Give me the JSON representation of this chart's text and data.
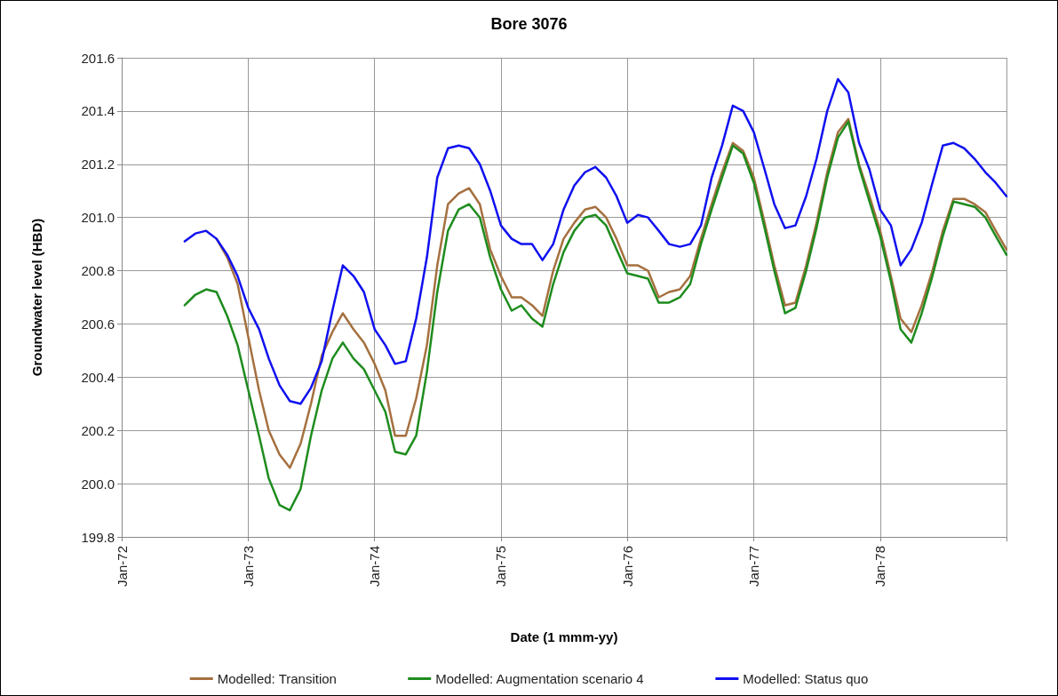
{
  "chart_data": {
    "type": "line",
    "title": "Bore 3076",
    "xlabel": "Date (1 mmm-yy)",
    "ylabel": "Groundwater level (HBD)",
    "x": [
      "1972-07",
      "1972-08",
      "1972-09",
      "1972-10",
      "1972-11",
      "1972-12",
      "1973-01",
      "1973-02",
      "1973-03",
      "1973-04",
      "1973-05",
      "1973-06",
      "1973-07",
      "1973-08",
      "1973-09",
      "1973-10",
      "1973-11",
      "1973-12",
      "1974-01",
      "1974-02",
      "1974-03",
      "1974-04",
      "1974-05",
      "1974-06",
      "1974-07",
      "1974-08",
      "1974-09",
      "1974-10",
      "1974-11",
      "1974-12",
      "1975-01",
      "1975-02",
      "1975-03",
      "1975-04",
      "1975-05",
      "1975-06",
      "1975-07",
      "1975-08",
      "1975-09",
      "1975-10",
      "1975-11",
      "1975-12",
      "1976-01",
      "1976-02",
      "1976-03",
      "1976-04",
      "1976-05",
      "1976-06",
      "1976-07",
      "1976-08",
      "1976-09",
      "1976-10",
      "1976-11",
      "1976-12",
      "1977-01",
      "1977-02",
      "1977-03",
      "1977-04",
      "1977-05",
      "1977-06",
      "1977-07",
      "1977-08",
      "1977-09",
      "1977-10",
      "1977-11",
      "1977-12",
      "1978-01",
      "1978-02",
      "1978-03",
      "1978-04",
      "1978-05",
      "1978-06",
      "1978-07",
      "1978-08",
      "1978-09",
      "1978-10",
      "1978-11",
      "1978-12",
      "1979-01"
    ],
    "series": [
      {
        "name": "Modelled: Transition",
        "color": "#a5703f",
        "values": [
          null,
          null,
          null,
          200.92,
          200.85,
          200.75,
          200.55,
          200.35,
          200.2,
          200.11,
          200.06,
          200.15,
          200.3,
          200.48,
          200.57,
          200.64,
          200.58,
          200.53,
          200.45,
          200.35,
          200.18,
          200.18,
          200.32,
          200.52,
          200.82,
          201.05,
          201.09,
          201.11,
          201.05,
          200.88,
          200.78,
          200.7,
          200.7,
          200.67,
          200.63,
          200.8,
          200.92,
          200.98,
          201.03,
          201.04,
          201.0,
          200.92,
          200.82,
          200.82,
          200.8,
          200.7,
          200.72,
          200.73,
          200.78,
          200.92,
          201.05,
          201.17,
          201.28,
          201.25,
          201.15,
          200.98,
          200.82,
          200.67,
          200.68,
          200.82,
          200.98,
          201.17,
          201.32,
          201.37,
          201.2,
          201.08,
          200.95,
          200.78,
          200.62,
          200.57,
          200.67,
          200.8,
          200.95,
          201.07,
          201.07,
          201.05,
          201.02,
          200.95,
          200.88
        ]
      },
      {
        "name": "Modelled: Augmentation scenario 4",
        "color": "#1e8c1e",
        "values": [
          200.67,
          200.71,
          200.73,
          200.72,
          200.63,
          200.52,
          200.35,
          200.18,
          200.02,
          199.92,
          199.9,
          199.98,
          200.18,
          200.35,
          200.47,
          200.53,
          200.47,
          200.43,
          200.35,
          200.27,
          200.12,
          200.11,
          200.18,
          200.42,
          200.72,
          200.95,
          201.03,
          201.05,
          201.0,
          200.85,
          200.73,
          200.65,
          200.67,
          200.62,
          200.59,
          200.75,
          200.87,
          200.95,
          201.0,
          201.01,
          200.97,
          200.88,
          200.79,
          200.78,
          200.77,
          200.68,
          200.68,
          200.7,
          200.75,
          200.9,
          201.03,
          201.15,
          201.27,
          201.24,
          201.13,
          200.96,
          200.8,
          200.64,
          200.66,
          200.8,
          200.96,
          201.15,
          201.3,
          201.36,
          201.19,
          201.06,
          200.93,
          200.76,
          200.58,
          200.53,
          200.64,
          200.78,
          200.93,
          201.06,
          201.05,
          201.04,
          201.0,
          200.93,
          200.86
        ]
      },
      {
        "name": "Modelled: Status quo",
        "color": "#1010f0",
        "values": [
          200.91,
          200.94,
          200.95,
          200.92,
          200.86,
          200.78,
          200.66,
          200.58,
          200.47,
          200.37,
          200.31,
          200.3,
          200.36,
          200.46,
          200.65,
          200.82,
          200.78,
          200.72,
          200.58,
          200.52,
          200.45,
          200.46,
          200.62,
          200.85,
          201.15,
          201.26,
          201.27,
          201.26,
          201.2,
          201.1,
          200.97,
          200.92,
          200.9,
          200.9,
          200.84,
          200.9,
          201.03,
          201.12,
          201.17,
          201.19,
          201.15,
          201.08,
          200.98,
          201.01,
          201.0,
          200.95,
          200.9,
          200.89,
          200.9,
          200.97,
          201.15,
          201.27,
          201.42,
          201.4,
          201.32,
          201.18,
          201.05,
          200.96,
          200.97,
          201.08,
          201.22,
          201.4,
          201.52,
          201.47,
          201.28,
          201.18,
          201.03,
          200.97,
          200.82,
          200.88,
          200.98,
          201.13,
          201.27,
          201.28,
          201.26,
          201.22,
          201.17,
          201.13,
          201.08
        ]
      }
    ],
    "xlim": [
      "1972-01",
      "1979-01"
    ],
    "xticks": [
      {
        "value": "1972-01",
        "label": "Jan-72"
      },
      {
        "value": "1973-01",
        "label": "Jan-73"
      },
      {
        "value": "1974-01",
        "label": "Jan-74"
      },
      {
        "value": "1975-01",
        "label": "Jan-75"
      },
      {
        "value": "1976-01",
        "label": "Jan-76"
      },
      {
        "value": "1977-01",
        "label": "Jan-77"
      },
      {
        "value": "1978-01",
        "label": "Jan-78"
      },
      {
        "value": "1979-01",
        "label": null
      }
    ],
    "ylim": [
      199.8,
      201.6
    ],
    "yticks": [
      {
        "value": 199.8,
        "label": "199.8"
      },
      {
        "value": 200.0,
        "label": "200.0"
      },
      {
        "value": 200.2,
        "label": "200.2"
      },
      {
        "value": 200.4,
        "label": "200.4"
      },
      {
        "value": 200.6,
        "label": "200.6"
      },
      {
        "value": 200.8,
        "label": "200.8"
      },
      {
        "value": 201.0,
        "label": "201.0"
      },
      {
        "value": 201.2,
        "label": "201.2"
      },
      {
        "value": 201.4,
        "label": "201.4"
      },
      {
        "value": 201.6,
        "label": "201.6"
      }
    ],
    "grid": true,
    "legend": "bottom",
    "marker": "none",
    "line_style": "solid"
  }
}
